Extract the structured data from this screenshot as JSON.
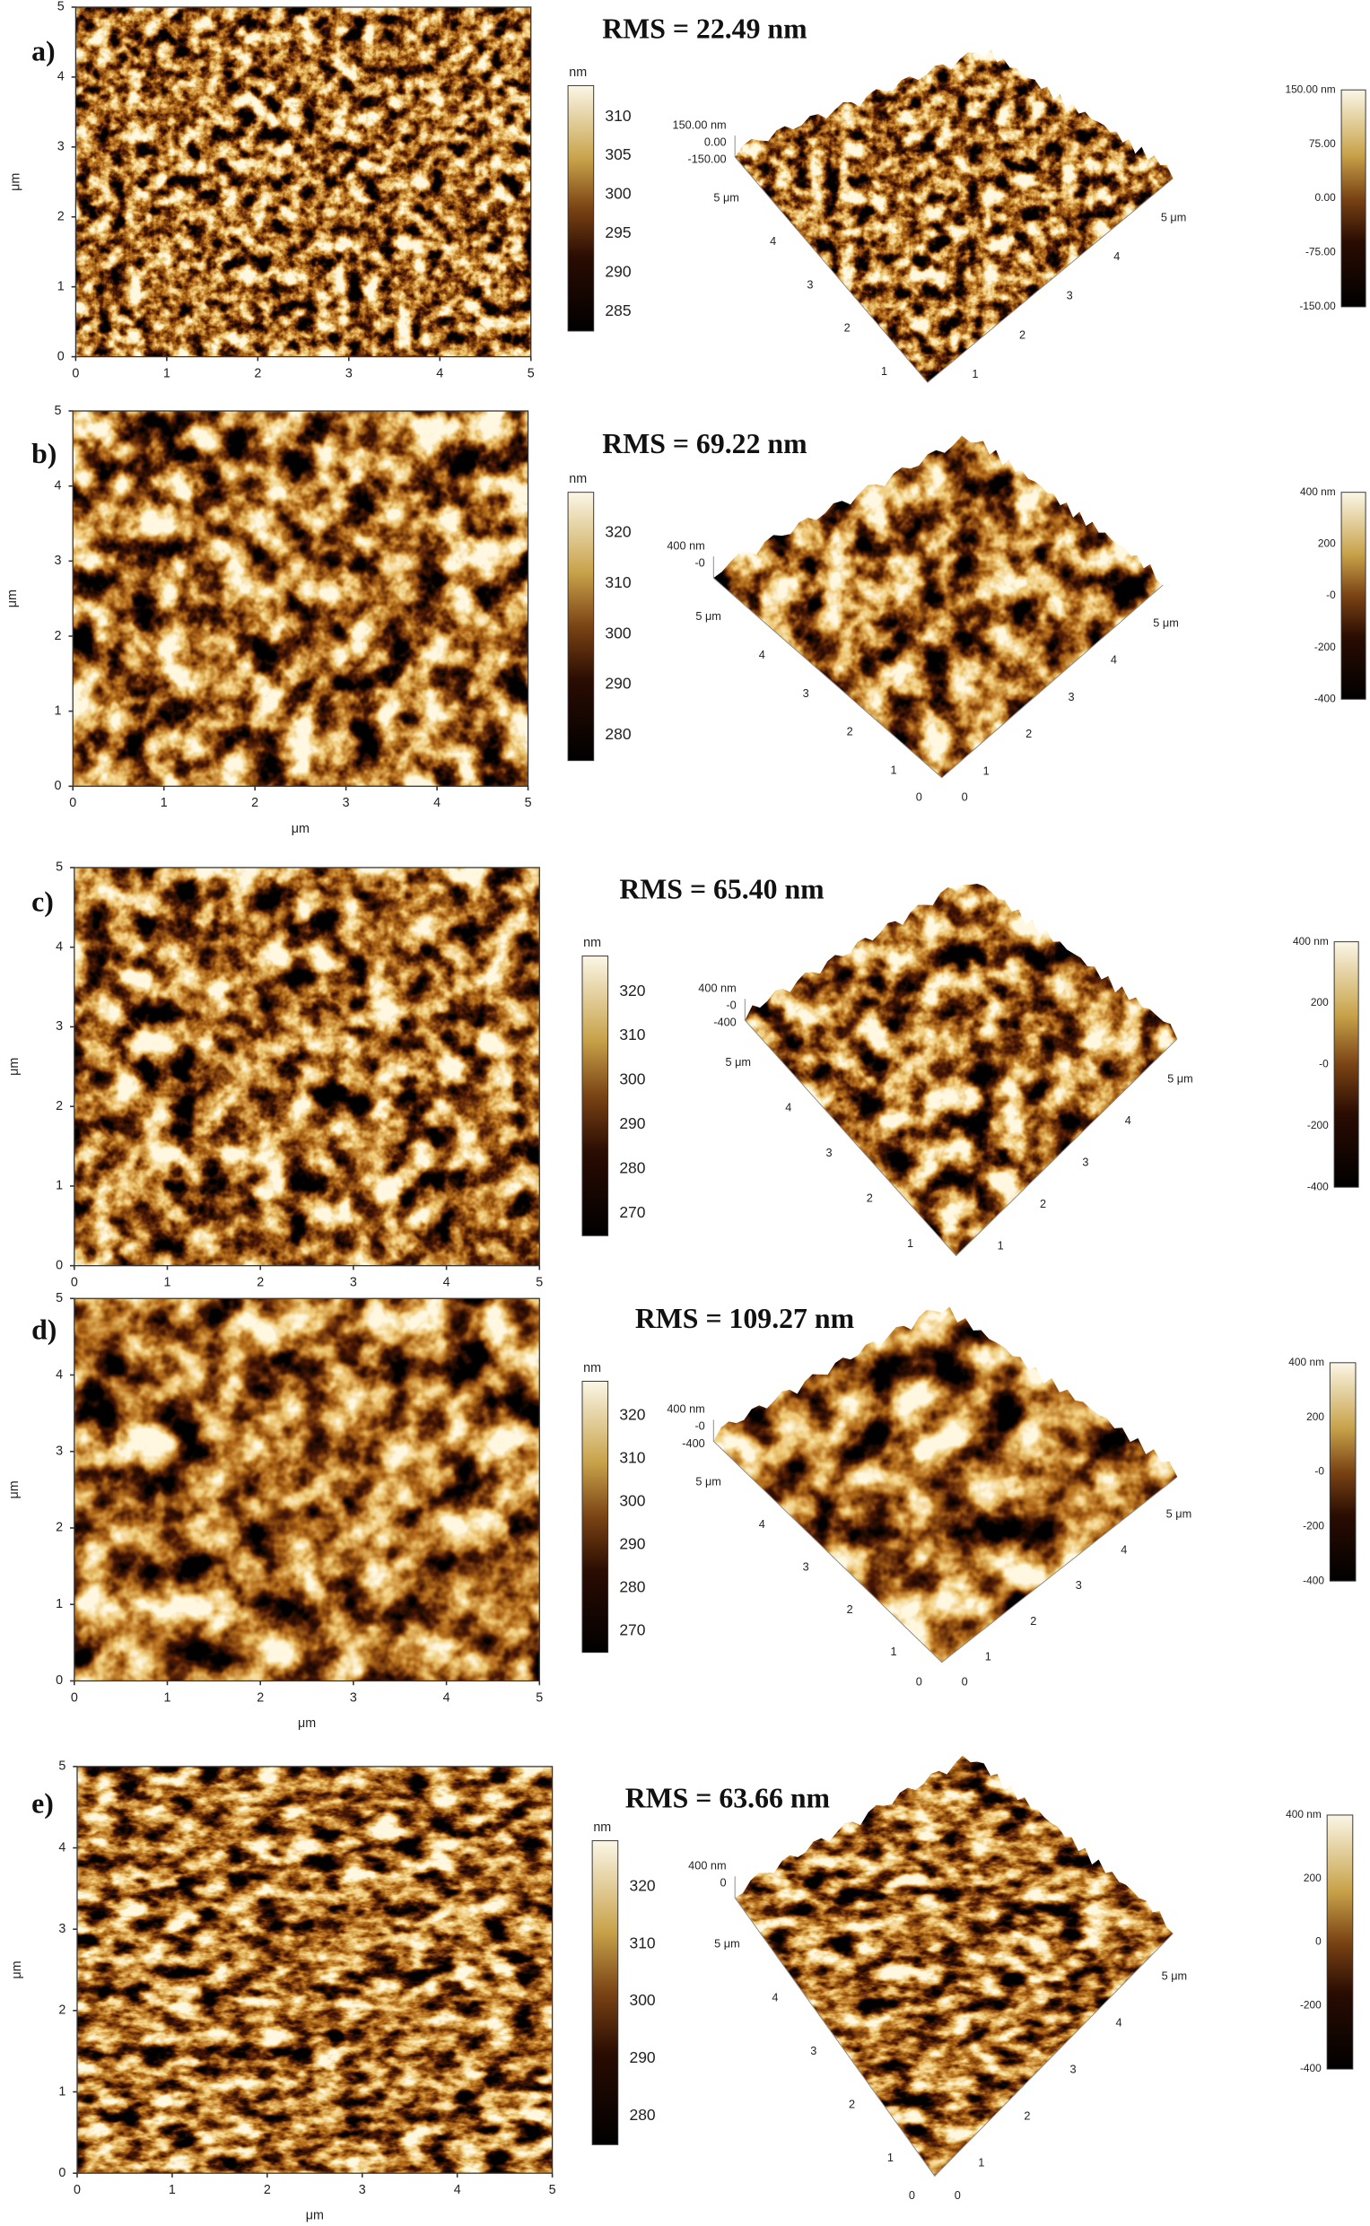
{
  "panels": [
    {
      "label": "a)",
      "rms": "RMS = 22.49 nm",
      "y_axis_label": "μm",
      "x_ticks": [
        "0",
        "1",
        "2",
        "3",
        "4",
        "5"
      ],
      "y_ticks": [
        "0",
        "1",
        "2",
        "3",
        "4",
        "5"
      ],
      "colorbar_unit": "nm",
      "colorbar_ticks": [
        "310",
        "305",
        "300",
        "295",
        "290",
        "285"
      ],
      "surface_z_labels": [
        "150.00 nm",
        "0.00",
        "-150.00"
      ],
      "surface_left_ticks": [
        "5 μm",
        "4",
        "3",
        "2",
        "1"
      ],
      "surface_right_ticks": [
        "5 μm",
        "4",
        "3",
        "2",
        "1"
      ],
      "surface_colorbar_ticks": [
        "150.00 nm",
        "75.00",
        "0.00",
        "-75.00",
        "-150.00"
      ]
    },
    {
      "label": "b)",
      "rms": "RMS = 69.22 nm",
      "y_axis_label": "μm",
      "x_axis_label": "μm",
      "x_ticks": [
        "0",
        "1",
        "2",
        "3",
        "4",
        "5"
      ],
      "y_ticks": [
        "0",
        "1",
        "2",
        "3",
        "4",
        "5"
      ],
      "colorbar_unit": "nm",
      "colorbar_ticks": [
        "320",
        "310",
        "300",
        "290",
        "280"
      ],
      "surface_z_labels": [
        "400 nm",
        "-0"
      ],
      "surface_left_ticks": [
        "5 μm",
        "4",
        "3",
        "2",
        "1"
      ],
      "surface_right_ticks": [
        "5 μm",
        "4",
        "3",
        "2",
        "1"
      ],
      "surface_origin": [
        "0",
        "0"
      ],
      "surface_colorbar_ticks": [
        "400 nm",
        "200",
        "-0",
        "-200",
        "-400"
      ]
    },
    {
      "label": "c)",
      "rms": "RMS = 65.40 nm",
      "y_axis_label": "μm",
      "x_ticks": [
        "0",
        "1",
        "2",
        "3",
        "4",
        "5"
      ],
      "y_ticks": [
        "0",
        "1",
        "2",
        "3",
        "4",
        "5"
      ],
      "colorbar_unit": "nm",
      "colorbar_ticks": [
        "320",
        "310",
        "300",
        "290",
        "280",
        "270"
      ],
      "surface_z_labels": [
        "400 nm",
        "-0",
        "-400"
      ],
      "surface_left_ticks": [
        "5 μm",
        "4",
        "3",
        "2",
        "1"
      ],
      "surface_right_ticks": [
        "5 μm",
        "4",
        "3",
        "2",
        "1"
      ],
      "surface_colorbar_ticks": [
        "400 nm",
        "200",
        "-0",
        "-200",
        "-400"
      ]
    },
    {
      "label": "d)",
      "rms": "RMS = 109.27 nm",
      "y_axis_label": "μm",
      "x_axis_label": "μm",
      "x_ticks": [
        "0",
        "1",
        "2",
        "3",
        "4",
        "5"
      ],
      "y_ticks": [
        "0",
        "1",
        "2",
        "3",
        "4",
        "5"
      ],
      "colorbar_unit": "nm",
      "colorbar_ticks": [
        "320",
        "310",
        "300",
        "290",
        "280",
        "270"
      ],
      "surface_z_labels": [
        "400 nm",
        "-0",
        "-400"
      ],
      "surface_left_ticks": [
        "5 μm",
        "4",
        "3",
        "2",
        "1"
      ],
      "surface_right_ticks": [
        "5 μm",
        "4",
        "3",
        "2",
        "1"
      ],
      "surface_origin": [
        "0",
        "0"
      ],
      "surface_colorbar_ticks": [
        "400 nm",
        "200",
        "-0",
        "-200",
        "-400"
      ]
    },
    {
      "label": "e)",
      "rms": "RMS = 63.66 nm",
      "y_axis_label": "μm",
      "x_axis_label": "μm",
      "x_ticks": [
        "0",
        "1",
        "2",
        "3",
        "4",
        "5"
      ],
      "y_ticks": [
        "0",
        "1",
        "2",
        "3",
        "4",
        "5"
      ],
      "colorbar_unit": "nm",
      "colorbar_ticks": [
        "320",
        "310",
        "300",
        "290",
        "280"
      ],
      "surface_z_labels": [
        "400 nm",
        "0"
      ],
      "surface_left_ticks": [
        "5 μm",
        "4",
        "3",
        "2",
        "1"
      ],
      "surface_right_ticks": [
        "5 μm",
        "4",
        "3",
        "2",
        "1"
      ],
      "surface_origin": [
        "0",
        "0"
      ],
      "surface_colorbar_ticks": [
        "400 nm",
        "200",
        "0",
        "-200",
        "-400"
      ]
    }
  ]
}
